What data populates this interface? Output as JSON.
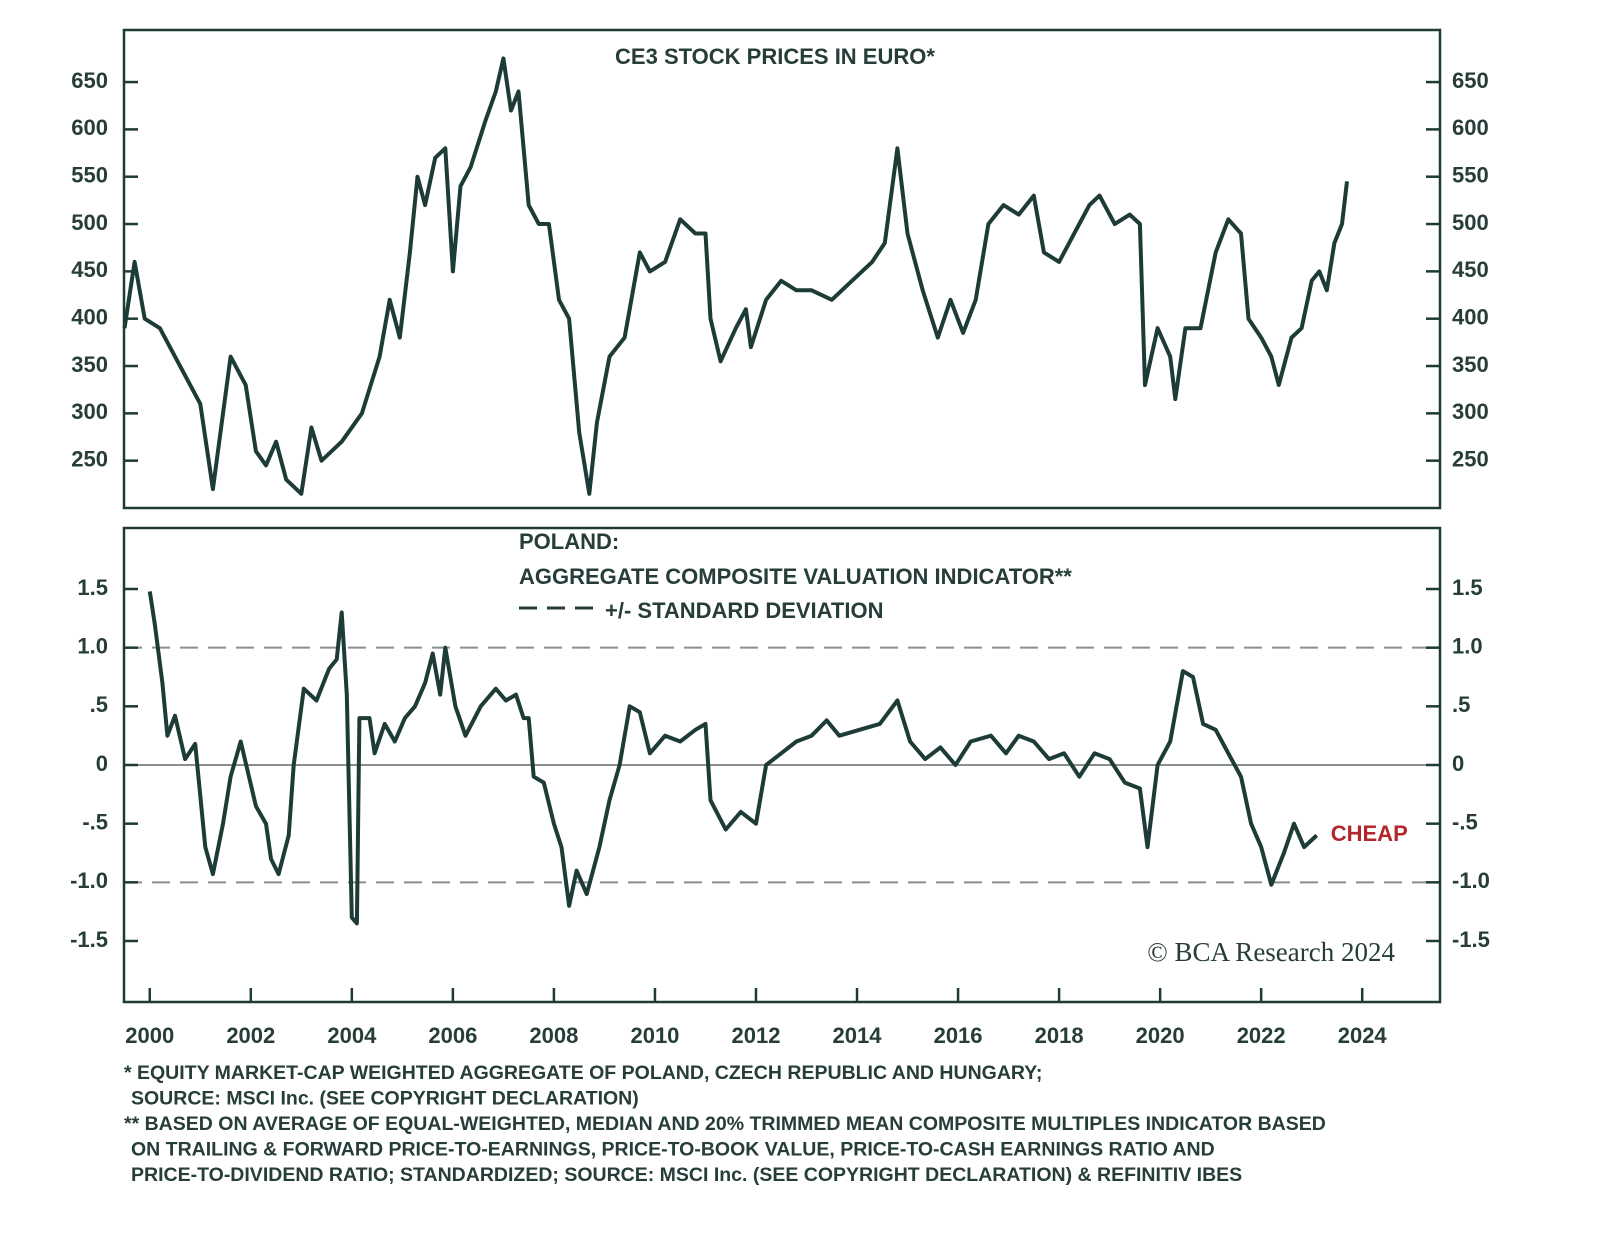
{
  "chart_data": [
    {
      "type": "line",
      "title": "CE3 STOCK PRICES IN EURO*",
      "x": [
        1999.5,
        1999.7,
        1999.9,
        2000.2,
        2000.5,
        2001.0,
        2001.25,
        2001.6,
        2001.9,
        2002.1,
        2002.3,
        2002.5,
        2002.7,
        2003.0,
        2003.2,
        2003.4,
        2003.8,
        2004.2,
        2004.55,
        2004.75,
        2004.95,
        2005.15,
        2005.3,
        2005.45,
        2005.65,
        2005.85,
        2006.0,
        2006.15,
        2006.35,
        2006.65,
        2006.85,
        2007.0,
        2007.15,
        2007.3,
        2007.5,
        2007.7,
        2007.9,
        2008.1,
        2008.3,
        2008.5,
        2008.7,
        2008.85,
        2009.1,
        2009.4,
        2009.7,
        2009.9,
        2010.2,
        2010.5,
        2010.8,
        2011.0,
        2011.1,
        2011.3,
        2011.6,
        2011.8,
        2011.9,
        2012.2,
        2012.5,
        2012.8,
        2013.1,
        2013.5,
        2013.9,
        2014.3,
        2014.55,
        2014.8,
        2015.0,
        2015.3,
        2015.6,
        2015.85,
        2016.1,
        2016.35,
        2016.6,
        2016.9,
        2017.2,
        2017.5,
        2017.7,
        2018.0,
        2018.3,
        2018.6,
        2018.8,
        2019.1,
        2019.4,
        2019.6,
        2019.7,
        2019.95,
        2020.2,
        2020.3,
        2020.5,
        2020.8,
        2021.1,
        2021.35,
        2021.6,
        2021.75,
        2022.0,
        2022.2,
        2022.35,
        2022.6,
        2022.8,
        2023.0,
        2023.15,
        2023.3,
        2023.45,
        2023.6,
        2023.7
      ],
      "values": [
        390,
        460,
        400,
        390,
        360,
        310,
        220,
        360,
        330,
        260,
        245,
        270,
        230,
        215,
        285,
        250,
        270,
        300,
        360,
        420,
        380,
        470,
        550,
        520,
        570,
        580,
        450,
        540,
        560,
        610,
        640,
        675,
        620,
        640,
        520,
        500,
        500,
        420,
        400,
        280,
        215,
        290,
        360,
        380,
        470,
        450,
        460,
        505,
        490,
        490,
        400,
        355,
        390,
        410,
        370,
        420,
        440,
        430,
        430,
        420,
        440,
        460,
        480,
        580,
        490,
        430,
        380,
        420,
        385,
        420,
        500,
        520,
        510,
        530,
        470,
        460,
        490,
        520,
        530,
        500,
        510,
        500,
        330,
        390,
        360,
        315,
        390,
        390,
        470,
        505,
        490,
        400,
        380,
        360,
        330,
        380,
        390,
        440,
        450,
        430,
        480,
        500,
        545
      ],
      "color": "#1d3b37",
      "xlim": [
        1999.49,
        2025.54
      ],
      "ylim": [
        200,
        705
      ],
      "yticks": [
        250,
        300,
        350,
        400,
        450,
        500,
        550,
        600,
        650
      ]
    },
    {
      "type": "line",
      "legend_title": "POLAND:",
      "x": [
        2000.0,
        2000.1,
        2000.25,
        2000.35,
        2000.5,
        2000.7,
        2000.9,
        2001.1,
        2001.25,
        2001.45,
        2001.6,
        2001.8,
        2002.1,
        2002.3,
        2002.4,
        2002.55,
        2002.75,
        2002.85,
        2003.05,
        2003.3,
        2003.55,
        2003.7,
        2003.8,
        2003.9,
        2004.0,
        2004.1,
        2004.15,
        2004.35,
        2004.45,
        2004.65,
        2004.85,
        2005.05,
        2005.25,
        2005.45,
        2005.6,
        2005.75,
        2005.85,
        2006.05,
        2006.25,
        2006.55,
        2006.85,
        2007.05,
        2007.25,
        2007.4,
        2007.5,
        2007.6,
        2007.8,
        2008.0,
        2008.15,
        2008.3,
        2008.45,
        2008.65,
        2008.9,
        2009.1,
        2009.3,
        2009.5,
        2009.7,
        2009.9,
        2010.2,
        2010.5,
        2010.8,
        2011.0,
        2011.1,
        2011.4,
        2011.7,
        2012.0,
        2012.2,
        2012.5,
        2012.8,
        2013.1,
        2013.4,
        2013.65,
        2014.05,
        2014.45,
        2014.8,
        2015.05,
        2015.35,
        2015.65,
        2015.95,
        2016.25,
        2016.65,
        2016.95,
        2017.2,
        2017.5,
        2017.8,
        2018.1,
        2018.4,
        2018.7,
        2019.0,
        2019.3,
        2019.6,
        2019.75,
        2019.95,
        2020.2,
        2020.45,
        2020.65,
        2020.85,
        2021.1,
        2021.35,
        2021.6,
        2021.8,
        2022.0,
        2022.2,
        2022.45,
        2022.65,
        2022.85,
        2023.1
      ],
      "series": [
        {
          "name": "AGGREGATE COMPOSITE VALUATION INDICATOR**",
          "color": "#1d3b37",
          "values": [
            1.48,
            1.2,
            0.7,
            0.25,
            0.42,
            0.05,
            0.18,
            -0.7,
            -0.93,
            -0.5,
            -0.1,
            0.2,
            -0.35,
            -0.5,
            -0.8,
            -0.93,
            -0.6,
            0.0,
            0.65,
            0.55,
            0.82,
            0.9,
            1.3,
            0.6,
            -1.3,
            -1.35,
            0.4,
            0.4,
            0.1,
            0.35,
            0.2,
            0.4,
            0.5,
            0.7,
            0.95,
            0.6,
            1.0,
            0.5,
            0.25,
            0.5,
            0.65,
            0.55,
            0.6,
            0.4,
            0.4,
            -0.1,
            -0.15,
            -0.5,
            -0.7,
            -1.2,
            -0.9,
            -1.1,
            -0.7,
            -0.3,
            0.0,
            0.5,
            0.45,
            0.1,
            0.25,
            0.2,
            0.3,
            0.35,
            -0.3,
            -0.55,
            -0.4,
            -0.5,
            0.0,
            0.1,
            0.2,
            0.25,
            0.38,
            0.25,
            0.3,
            0.35,
            0.55,
            0.2,
            0.05,
            0.15,
            0.0,
            0.2,
            0.25,
            0.1,
            0.25,
            0.2,
            0.05,
            0.1,
            -0.1,
            0.1,
            0.05,
            -0.15,
            -0.2,
            -0.7,
            0.0,
            0.2,
            0.8,
            0.75,
            0.35,
            0.3,
            0.1,
            -0.1,
            -0.5,
            -0.7,
            -1.02,
            -0.75,
            -0.5,
            -0.7,
            -0.6
          ]
        }
      ],
      "reference_lines": [
        1,
        -1
      ],
      "reference_label": "+/- STANDARD DEVIATION",
      "reference_color": "#8a8f8d",
      "zero_line": true,
      "annotation": {
        "text": "CHEAP",
        "color": "#b3262c"
      },
      "copyright": "© BCA Research 2024",
      "xlim": [
        1999.49,
        2025.54
      ],
      "ylim": [
        -2.02,
        2.02
      ],
      "xticks": [
        2000,
        2002,
        2004,
        2006,
        2008,
        2010,
        2012,
        2014,
        2016,
        2018,
        2020,
        2022,
        2024
      ],
      "yticks": [
        {
          "value": -1.5,
          "label": "-1.5"
        },
        {
          "value": -1,
          "label": "-1.0"
        },
        {
          "value": -0.5,
          "label": "-.5"
        },
        0,
        {
          "value": 0.5,
          "label": ".5"
        },
        {
          "value": 1,
          "label": "1.0"
        },
        1.5
      ]
    }
  ],
  "footnotes": [
    "* EQUITY MARKET-CAP WEIGHTED AGGREGATE OF POLAND, CZECH REPUBLIC AND HUNGARY;",
    "SOURCE: MSCI Inc. (SEE COPYRIGHT DECLARATION)",
    "** BASED ON AVERAGE OF EQUAL-WEIGHTED, MEDIAN AND 20% TRIMMED MEAN COMPOSITE MULTIPLES INDICATOR BASED",
    "ON TRAILING & FORWARD PRICE-TO-EARNINGS, PRICE-TO-BOOK VALUE, PRICE-TO-CASH EARNINGS RATIO AND",
    "PRICE-TO-DIVIDEND RATIO; STANDARDIZED; SOURCE: MSCI Inc. (SEE COPYRIGHT DECLARATION) & REFINITIV IBES"
  ]
}
